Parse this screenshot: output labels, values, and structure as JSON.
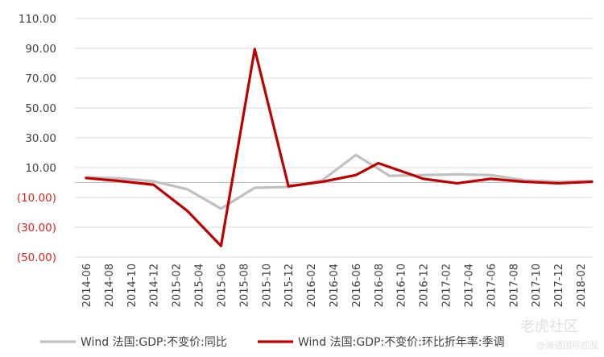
{
  "chart_data": {
    "type": "line",
    "title": "",
    "xlabel": "",
    "ylabel": "",
    "ylim": [
      -50,
      110
    ],
    "yticks": [
      110,
      90,
      70,
      50,
      30,
      10,
      -10,
      -30,
      -50
    ],
    "ytick_labels": [
      "110.00",
      "90.00",
      "70.00",
      "50.00",
      "30.00",
      "10.00",
      "(10.00)",
      "(30.00)",
      "(50.00)"
    ],
    "negative_label_color": "#e02020",
    "positive_label_color": "#404040",
    "grid": true,
    "legend_position": "bottom",
    "categories": [
      "2014-06",
      "2014-08",
      "2014-10",
      "2014-12",
      "2015-02",
      "2015-04",
      "2015-06",
      "2015-08",
      "2015-10",
      "2015-12",
      "2016-02",
      "2016-04",
      "2016-06",
      "2016-08",
      "2016-10",
      "2016-12",
      "2017-02",
      "2017-04",
      "2017-06",
      "2017-08",
      "2017-10",
      "2017-12",
      "2018-02"
    ],
    "series": [
      {
        "name": "Wind 法国:GDP:不变价:同比",
        "color": "#c0c0c0",
        "points": [
          [
            "2014-06",
            3.5
          ],
          [
            "2014-09",
            2.8
          ],
          [
            "2014-12",
            0.8
          ],
          [
            "2015-03",
            -4.5
          ],
          [
            "2015-06",
            -17.5
          ],
          [
            "2015-09",
            -3.5
          ],
          [
            "2015-12",
            -3.0
          ],
          [
            "2016-03",
            1.5
          ],
          [
            "2016-06",
            18.5
          ],
          [
            "2016-09",
            4.5
          ],
          [
            "2016-12",
            5.0
          ],
          [
            "2017-03",
            5.5
          ],
          [
            "2017-06",
            5.0
          ],
          [
            "2017-09",
            1.5
          ],
          [
            "2017-12",
            0.5
          ],
          [
            "2018-03",
            1.0
          ]
        ]
      },
      {
        "name": "Wind 法国:GDP:不变价:环比折年率:季调",
        "color": "#c00000",
        "points": [
          [
            "2014-06",
            3.0
          ],
          [
            "2014-09",
            1.0
          ],
          [
            "2014-12",
            -1.5
          ],
          [
            "2015-03",
            -19.0
          ],
          [
            "2015-06",
            -42.5
          ],
          [
            "2015-09",
            89.5
          ],
          [
            "2015-12",
            -2.5
          ],
          [
            "2016-03",
            0.5
          ],
          [
            "2016-06",
            5.0
          ],
          [
            "2016-08",
            13.0
          ],
          [
            "2016-12",
            2.5
          ],
          [
            "2017-03",
            -0.5
          ],
          [
            "2017-06",
            2.5
          ],
          [
            "2017-09",
            0.5
          ],
          [
            "2017-12",
            -0.5
          ],
          [
            "2018-03",
            0.5
          ]
        ]
      }
    ]
  },
  "watermark": {
    "brand": "老虎社区",
    "sub": "@海通国际控股"
  }
}
